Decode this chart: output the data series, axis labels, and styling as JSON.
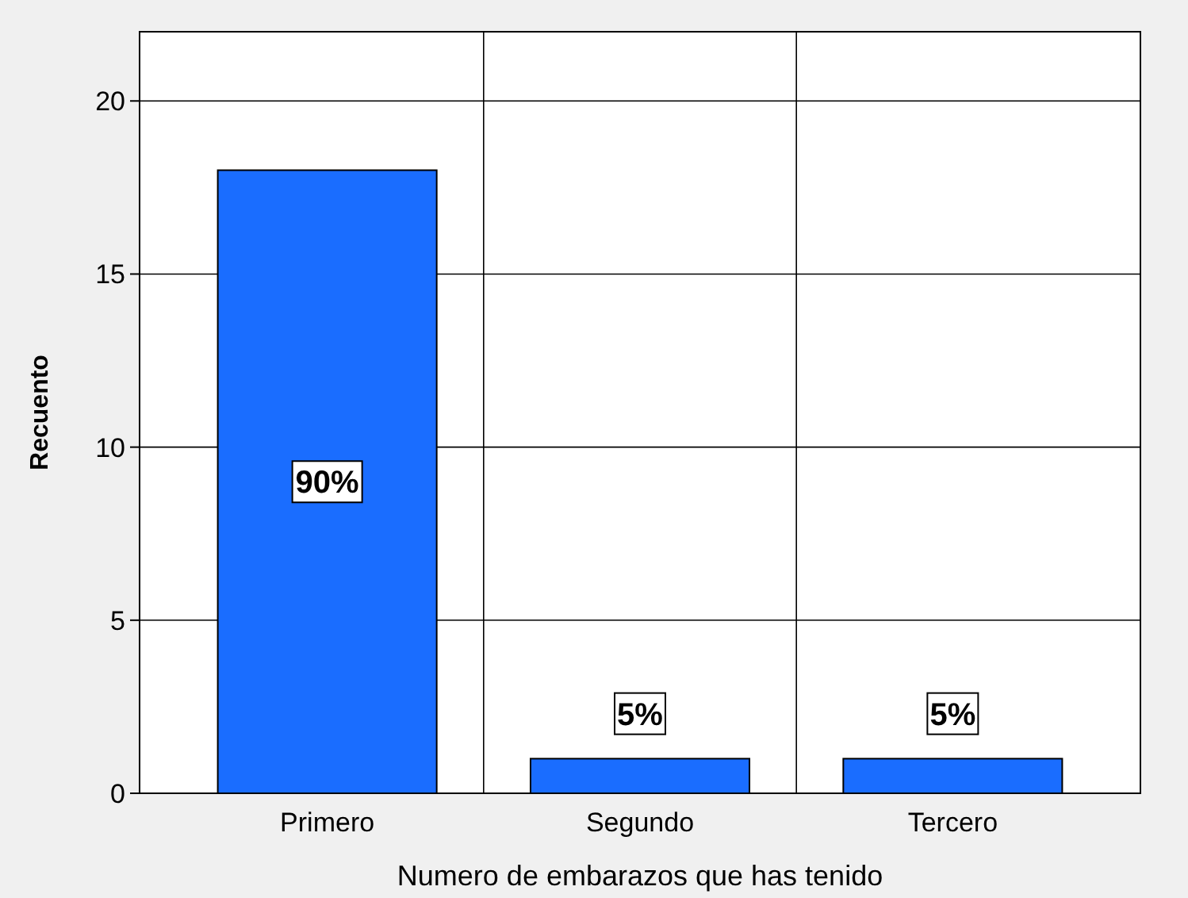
{
  "chart_data": {
    "type": "bar",
    "xlabel": "Numero de embarazos que has tenido",
    "ylabel": "Recuento",
    "categories": [
      "Primero",
      "Segundo",
      "Tercero"
    ],
    "values": [
      18,
      1,
      1
    ],
    "color": "#1a6dff",
    "annotations": [
      {
        "text": "90%",
        "x": "Primero",
        "y": 9
      },
      {
        "text": "5%",
        "x": "Segundo",
        "y": 2.3
      },
      {
        "text": "5%",
        "x": "Tercero",
        "y": 2.3
      }
    ],
    "ylim": [
      0,
      22
    ],
    "yticks": [
      0,
      5,
      10,
      15,
      20
    ],
    "grid": true
  }
}
